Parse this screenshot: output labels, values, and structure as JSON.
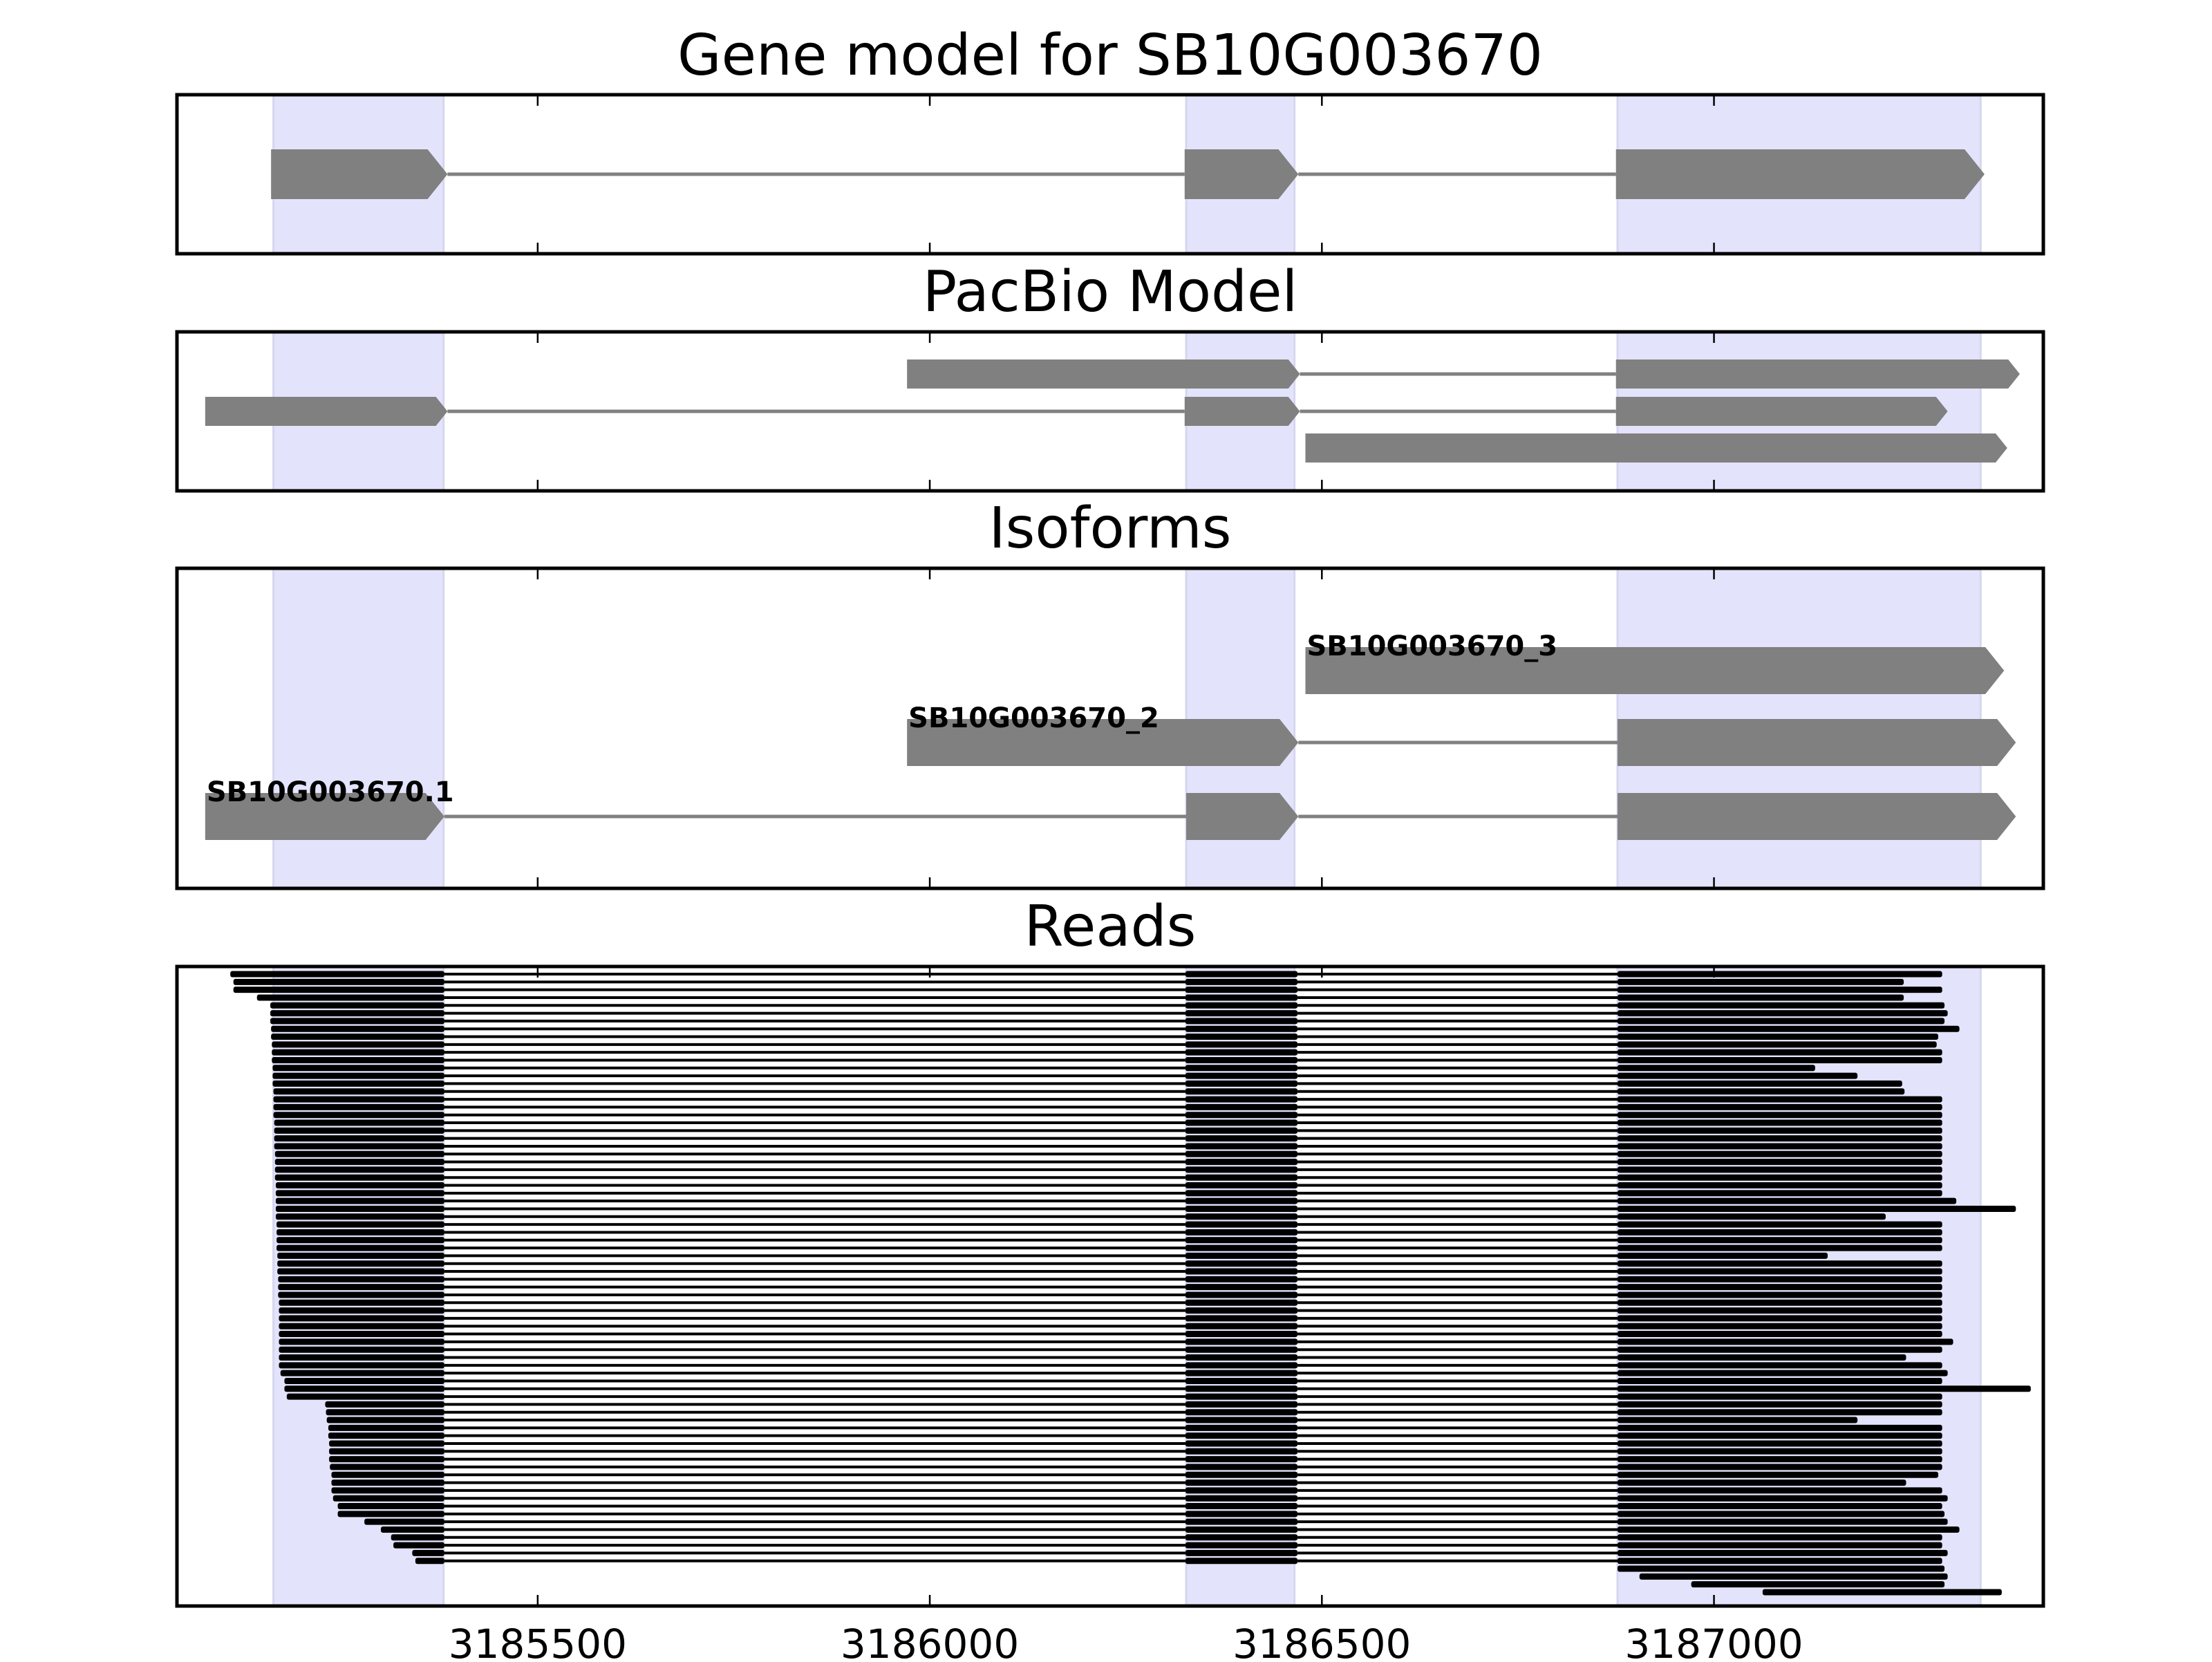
{
  "chart_data": [
    {
      "type": "gene-track",
      "title": "Gene model for SB10G003670",
      "xlim": [
        3185040,
        3187420
      ],
      "transcripts": [
        {
          "exons": [
            [
              3185160,
              3185385
            ],
            [
              3186325,
              3186470
            ],
            [
              3186875,
              3187345
            ]
          ]
        }
      ]
    },
    {
      "type": "gene-track",
      "title": "PacBio Model",
      "xlim": [
        3185040,
        3187420
      ],
      "transcripts": [
        {
          "exons": [
            [
              3185971,
              3186472
            ],
            [
              3186875,
              3187390
            ]
          ]
        },
        {
          "exons": [
            [
              3185076,
              3185385
            ],
            [
              3186325,
              3186472
            ],
            [
              3186875,
              3187298
            ]
          ]
        },
        {
          "exons": [
            [
              3186479,
              3187374
            ]
          ]
        }
      ]
    },
    {
      "type": "gene-track",
      "title": "Isoforms",
      "xlim": [
        3185040,
        3187420
      ],
      "transcripts": [
        {
          "label": "SB10G003670_3",
          "exons": [
            [
              3186479,
              3187370
            ]
          ]
        },
        {
          "label": "SB10G003670_2",
          "exons": [
            [
              3185971,
              3186470
            ],
            [
              3186877,
              3187385
            ]
          ]
        },
        {
          "label": "SB10G003670.1",
          "exons": [
            [
              3185076,
              3185381
            ],
            [
              3186327,
              3186470
            ],
            [
              3186877,
              3187385
            ]
          ]
        }
      ]
    },
    {
      "type": "read-pileup",
      "title": "Reads",
      "xlim": [
        3185040,
        3187420
      ],
      "xticks": [
        "3185500",
        "3186000",
        "3186500",
        "3187000"
      ],
      "xtick_values": [
        3185500,
        3186000,
        3186500,
        3187000
      ],
      "introns": [
        [
          3185381,
          3186326
        ],
        [
          3186469,
          3186877
        ]
      ],
      "reads": [
        [
          3185108,
          3187291
        ],
        [
          3185112,
          3187242
        ],
        [
          3185112,
          3187291
        ],
        [
          3185142,
          3187242
        ],
        [
          3185159,
          3187294
        ],
        [
          3185159,
          3187298
        ],
        [
          3185159,
          3187294
        ],
        [
          3185160,
          3187313
        ],
        [
          3185160,
          3187286
        ],
        [
          3185161,
          3187284
        ],
        [
          3185161,
          3187291
        ],
        [
          3185161,
          3187291
        ],
        [
          3185162,
          3187129
        ],
        [
          3185162,
          3187183
        ],
        [
          3185162,
          3187240
        ],
        [
          3185163,
          3187243
        ],
        [
          3185163,
          3187291
        ],
        [
          3185163,
          3187291
        ],
        [
          3185163,
          3187291
        ],
        [
          3185164,
          3187291
        ],
        [
          3185164,
          3187291
        ],
        [
          3185164,
          3187291
        ],
        [
          3185164,
          3187291
        ],
        [
          3185165,
          3187291
        ],
        [
          3185165,
          3187291
        ],
        [
          3185165,
          3187291
        ],
        [
          3185165,
          3187291
        ],
        [
          3185166,
          3187291
        ],
        [
          3185166,
          3187291
        ],
        [
          3185166,
          3187309
        ],
        [
          3185166,
          3187385
        ],
        [
          3185166,
          3187219
        ],
        [
          3185167,
          3187291
        ],
        [
          3185167,
          3187291
        ],
        [
          3185167,
          3187291
        ],
        [
          3185167,
          3187291
        ],
        [
          3185168,
          3187145
        ],
        [
          3185168,
          3187291
        ],
        [
          3185168,
          3187291
        ],
        [
          3185169,
          3187291
        ],
        [
          3185169,
          3187291
        ],
        [
          3185169,
          3187291
        ],
        [
          3185170,
          3187291
        ],
        [
          3185170,
          3187291
        ],
        [
          3185170,
          3187291
        ],
        [
          3185170,
          3187291
        ],
        [
          3185170,
          3187291
        ],
        [
          3185170,
          3187305
        ],
        [
          3185170,
          3187291
        ],
        [
          3185170,
          3187245
        ],
        [
          3185170,
          3187291
        ],
        [
          3185172,
          3187298
        ],
        [
          3185177,
          3187291
        ],
        [
          3185177,
          3187404
        ],
        [
          3185180,
          3187291
        ],
        [
          3185229,
          3187291
        ],
        [
          3185230,
          3187291
        ],
        [
          3185231,
          3187183
        ],
        [
          3185233,
          3187291
        ],
        [
          3185233,
          3187291
        ],
        [
          3185234,
          3187291
        ],
        [
          3185234,
          3187291
        ],
        [
          3185234,
          3187291
        ],
        [
          3185235,
          3187291
        ],
        [
          3185237,
          3187286
        ],
        [
          3185237,
          3187245
        ],
        [
          3185237,
          3187291
        ],
        [
          3185239,
          3187298
        ],
        [
          3185245,
          3187291
        ],
        [
          3185245,
          3187294
        ],
        [
          3185279,
          3187298
        ],
        [
          3185300,
          3187313
        ],
        [
          3185313,
          3187291
        ],
        [
          3185316,
          3187291
        ],
        [
          3185340,
          3187298
        ],
        [
          3185344,
          3187291
        ],
        [
          3186877,
          3187294
        ],
        [
          3186905,
          3187298
        ],
        [
          3186971,
          3187294
        ],
        [
          3187062,
          3187367
        ]
      ]
    }
  ],
  "colors": {
    "feature": "#808080",
    "exon_highlight": "#e3e3fc",
    "read": "#000000"
  },
  "highlighted_exons": [
    [
      3185163,
      3185380
    ],
    [
      3186327,
      3186465
    ],
    [
      3186877,
      3187340
    ]
  ]
}
